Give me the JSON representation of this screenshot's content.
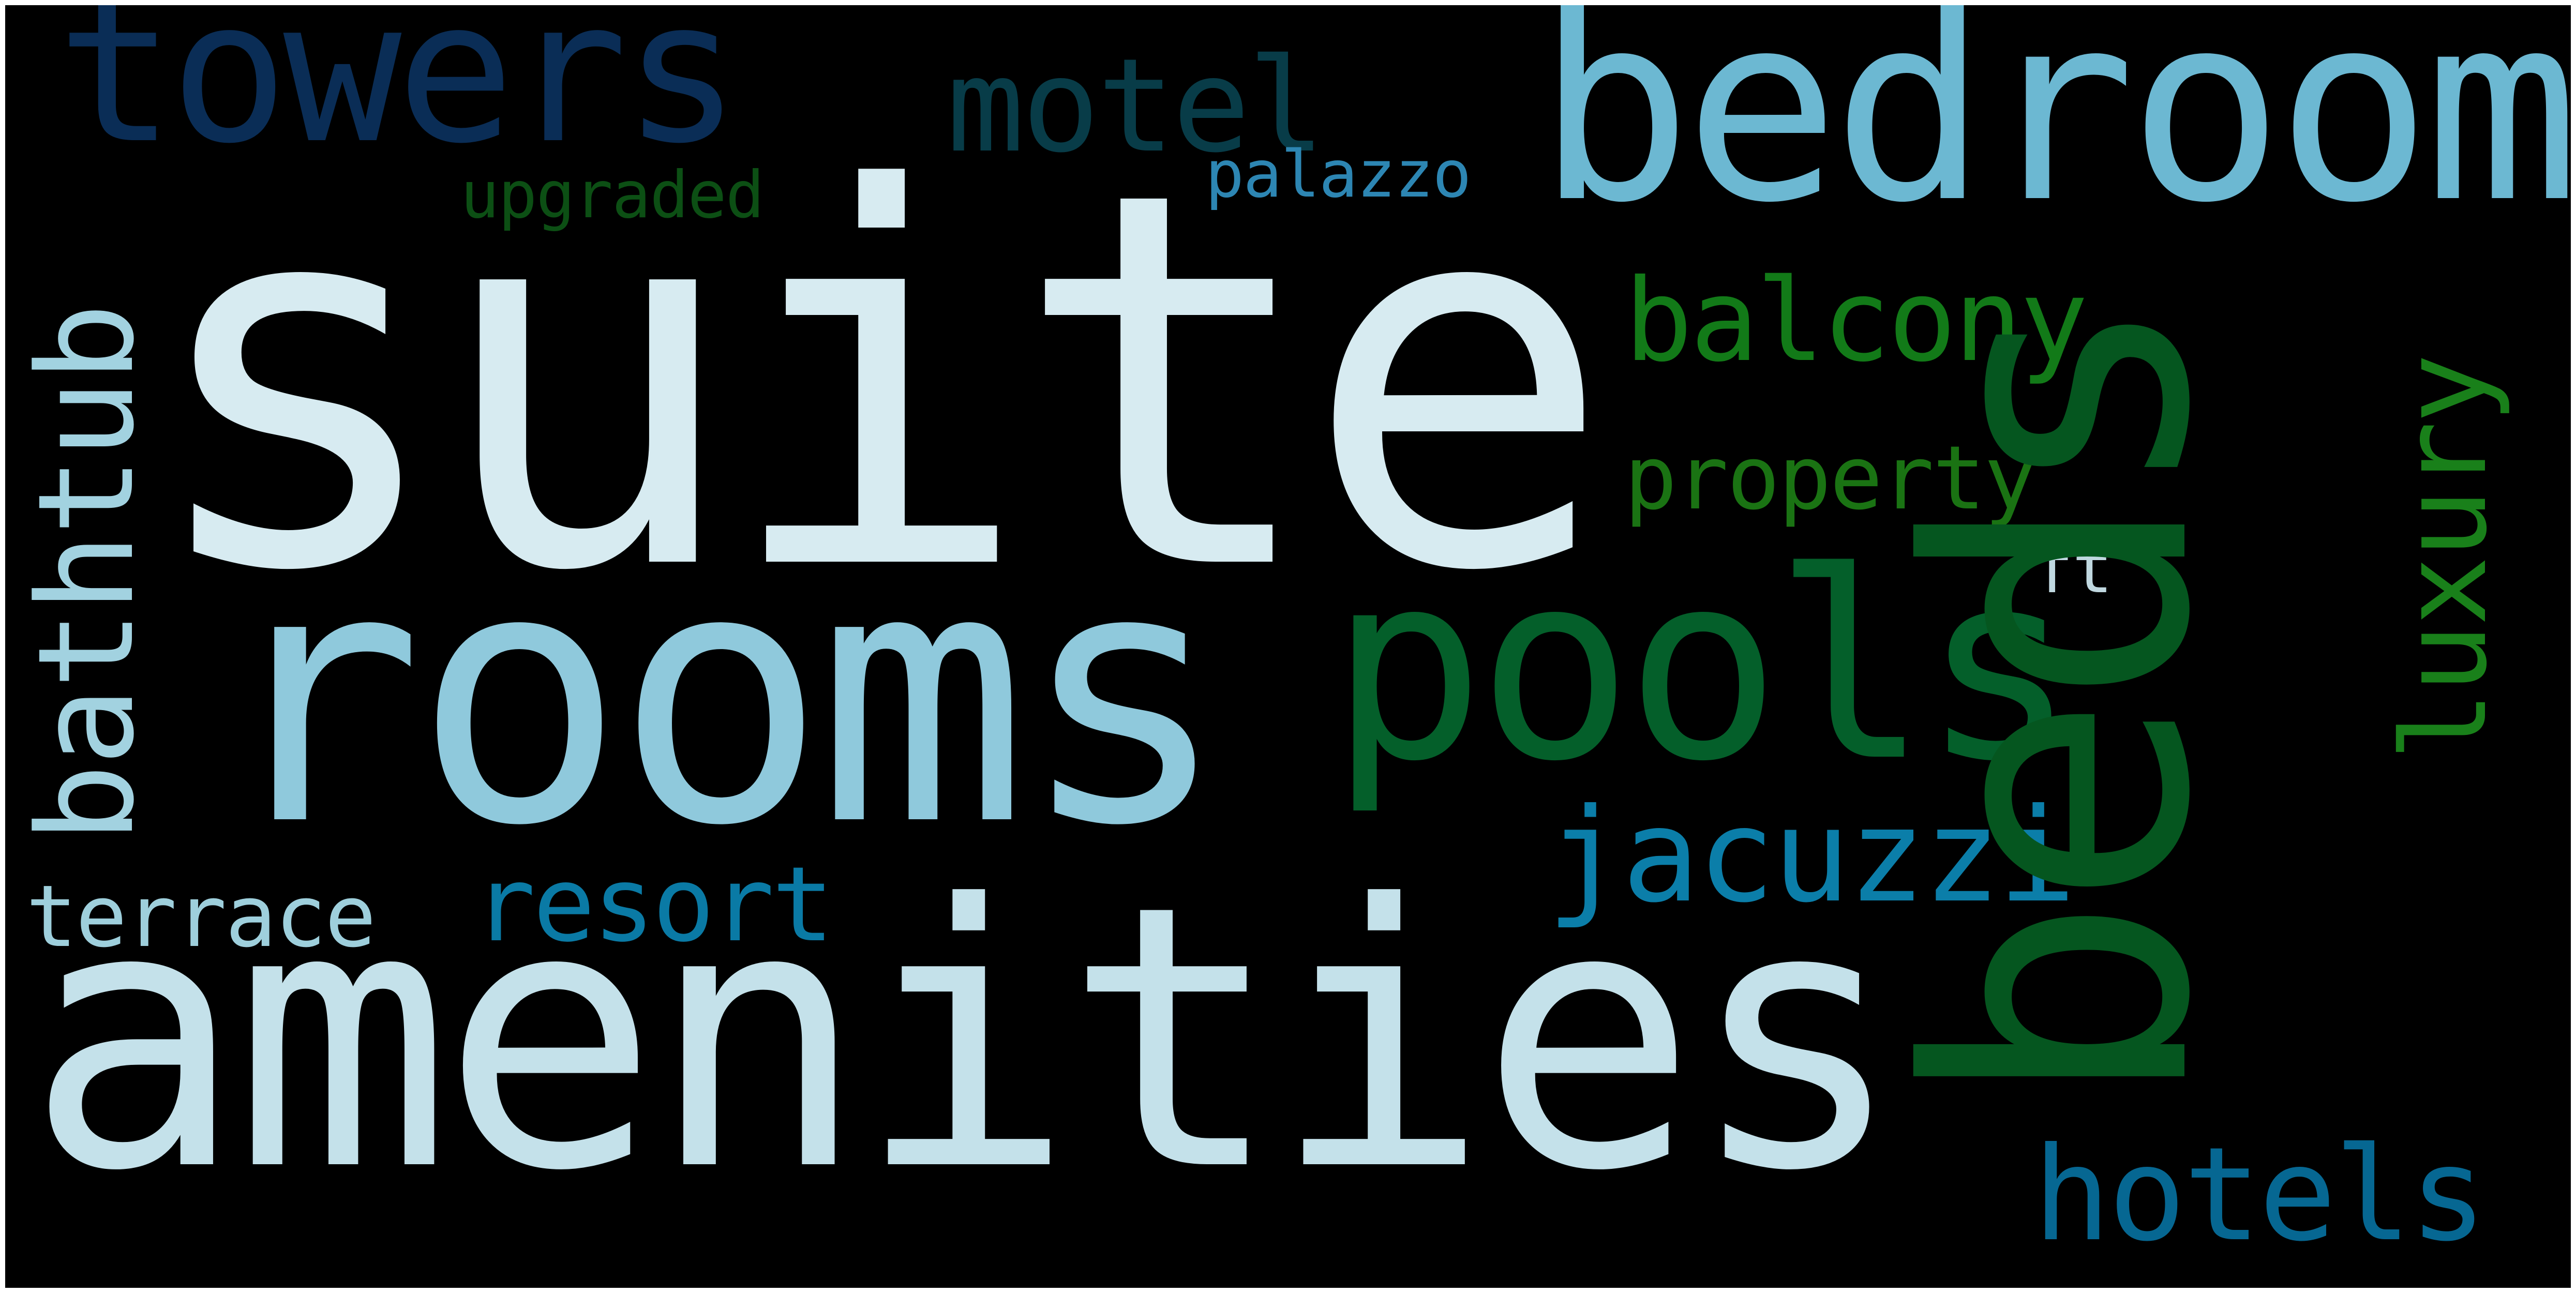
{
  "cloud": {
    "background": "#000000",
    "words": {
      "suite": {
        "text": "suite",
        "color": "#d7ebf1",
        "orientation": "horizontal"
      },
      "amenities": {
        "text": "amenities",
        "color": "#c4e1ea",
        "orientation": "horizontal"
      },
      "beds": {
        "text": "beds",
        "color": "#05561f",
        "orientation": "vertical"
      },
      "rooms": {
        "text": "rooms",
        "color": "#8fc9dc",
        "orientation": "horizontal"
      },
      "bedroom": {
        "text": "bedroom",
        "color": "#6cb8d2",
        "orientation": "horizontal"
      },
      "pools": {
        "text": "pools",
        "color": "#045f2a",
        "orientation": "horizontal"
      },
      "towers": {
        "text": "towers",
        "color": "#0a2d56",
        "orientation": "horizontal"
      },
      "motel": {
        "text": "motel",
        "color": "#083c48",
        "orientation": "horizontal"
      },
      "bathtub": {
        "text": "bathtub",
        "color": "#a2d2e0",
        "orientation": "vertical"
      },
      "balcony": {
        "text": "balcony",
        "color": "#127a18",
        "orientation": "horizontal"
      },
      "luxury": {
        "text": "luxury",
        "color": "#19801a",
        "orientation": "vertical"
      },
      "jacuzzi": {
        "text": "jacuzzi",
        "color": "#0b7ea9",
        "orientation": "horizontal"
      },
      "hotels": {
        "text": "hotels",
        "color": "#066792",
        "orientation": "horizontal"
      },
      "resort": {
        "text": "resort",
        "color": "#0a7aa5",
        "orientation": "horizontal"
      },
      "terrace": {
        "text": "terrace",
        "color": "#9ecfdc",
        "orientation": "horizontal"
      },
      "property": {
        "text": "property",
        "color": "#1a7313",
        "orientation": "horizontal"
      },
      "palazzo": {
        "text": "palazzo",
        "color": "#2d86b3",
        "orientation": "horizontal"
      },
      "upgraded": {
        "text": "upgraded",
        "color": "#0c4f14",
        "orientation": "horizontal"
      },
      "ft": {
        "text": "ft",
        "color": "#c0d8e0",
        "orientation": "horizontal"
      }
    }
  }
}
